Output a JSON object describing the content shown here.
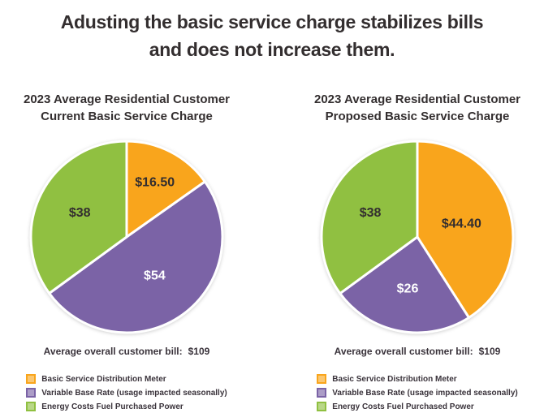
{
  "title": {
    "line1": "Adusting the basic service charge stabilizes bills",
    "line2": "and does not increase them."
  },
  "colors": {
    "yellow": "#F9A51C",
    "purple": "#7B63A6",
    "green": "#90C041",
    "dark_text": "#332E2F",
    "light_text": "#FFFFFF",
    "background": "#FFFFFF"
  },
  "legend": [
    {
      "label": "Basic Service Distribution Meter",
      "color": "#F9A51C"
    },
    {
      "label": "Variable Base Rate (usage impacted seasonally)",
      "color": "#7B63A6"
    },
    {
      "label": "Energy Costs Fuel Purchased Power",
      "color": "#90C041"
    }
  ],
  "chart_data": [
    {
      "type": "pie",
      "title": [
        "2023 Average Residential Customer",
        "Current Basic Service Charge"
      ],
      "start_angle_deg": 0,
      "direction": "clockwise-from-top",
      "total": 108.5,
      "slices": [
        {
          "label": "Basic Service Distribution Meter",
          "value": 16.5,
          "display": "$16.50",
          "color": "#F9A51C",
          "text_color": "#332E2F",
          "label_r": 0.64
        },
        {
          "label": "Variable Base Rate (usage impacted seasonally)",
          "value": 54,
          "display": "$54",
          "color": "#7B63A6",
          "text_color": "#FFFFFF",
          "label_r": 0.5
        },
        {
          "label": "Energy Costs Fuel Purchased Power",
          "value": 38,
          "display": "$38",
          "color": "#90C041",
          "text_color": "#332E2F",
          "label_r": 0.55
        }
      ],
      "note_label": "Average overall customer bill:",
      "note_value": "$109"
    },
    {
      "type": "pie",
      "title": [
        "2023 Average Residential Customer",
        "Proposed Basic Service Charge"
      ],
      "start_angle_deg": 0,
      "direction": "clockwise-from-top",
      "total": 108.4,
      "slices": [
        {
          "label": "Basic Service Distribution Meter",
          "value": 44.4,
          "display": "$44.40",
          "color": "#F9A51C",
          "text_color": "#332E2F",
          "label_r": 0.48
        },
        {
          "label": "Variable Base Rate (usage impacted seasonally)",
          "value": 26,
          "display": "$26",
          "color": "#7B63A6",
          "text_color": "#FFFFFF",
          "label_r": 0.55
        },
        {
          "label": "Energy Costs Fuel Purchased Power",
          "value": 38,
          "display": "$38",
          "color": "#90C041",
          "text_color": "#332E2F",
          "label_r": 0.55
        }
      ],
      "note_label": "Average overall customer bill:",
      "note_value": "$109"
    }
  ]
}
